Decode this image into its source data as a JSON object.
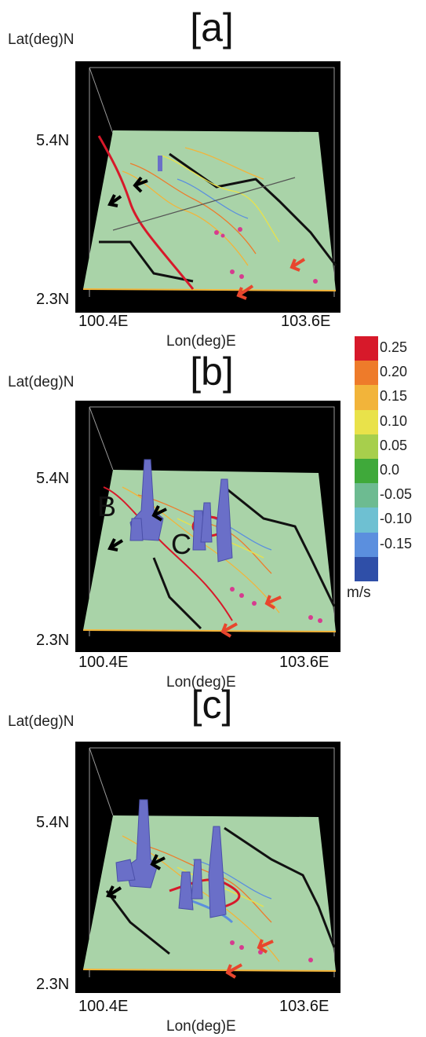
{
  "panels": [
    {
      "title": "[a]",
      "ylabel": "Lat(deg)N",
      "xlabel": "Lon(deg)E",
      "lat_top": "5.4N",
      "lat_bottom": "2.3N",
      "lon_left": "100.4E",
      "lon_right": "103.6E",
      "annotations": []
    },
    {
      "title": "[b]",
      "ylabel": "Lat(deg)N",
      "xlabel": "Lon(deg)E",
      "lat_top": "5.4N",
      "lat_bottom": "2.3N",
      "lon_left": "100.4E",
      "lon_right": "103.6E",
      "annotations": [
        "B",
        "C"
      ]
    },
    {
      "title": "[c]",
      "ylabel": "Lat(deg)N",
      "xlabel": "Lon(deg)E",
      "lat_top": "5.4N",
      "lat_bottom": "2.3N",
      "lon_left": "100.4E",
      "lon_right": "103.6E",
      "annotations": []
    }
  ],
  "colorbar": {
    "unit": "m/s",
    "levels": [
      {
        "label": "0.25",
        "color": "#d7192a"
      },
      {
        "label": "0.20",
        "color": "#ee7b2a"
      },
      {
        "label": "0.15",
        "color": "#f2b43a"
      },
      {
        "label": "0.10",
        "color": "#e9e24a"
      },
      {
        "label": "0.05",
        "color": "#a7cf4c"
      },
      {
        "label": "0.0",
        "color": "#3fa93a"
      },
      {
        "label": "-0.05",
        "color": "#6dbb91"
      },
      {
        "label": "-0.10",
        "color": "#6ec0d2"
      },
      {
        "label": "-0.15",
        "color": "#5b8fde"
      },
      {
        "label": "",
        "color": "#2f4fa8"
      }
    ]
  },
  "colors": {
    "sea": "#a9d3a8",
    "background": "#000000",
    "isosurface": "#6a6fc8",
    "arrow_black": "#000000",
    "arrow_red": "#e8462d"
  }
}
